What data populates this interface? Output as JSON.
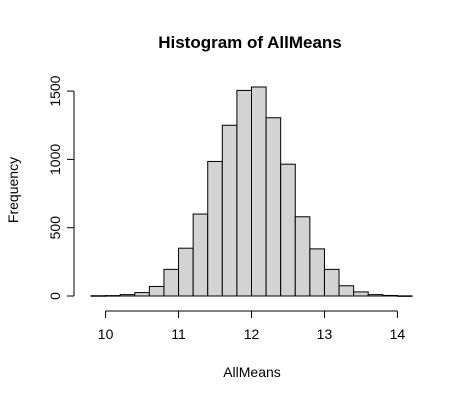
{
  "chart_data": {
    "type": "bar",
    "title": "Histogram of AllMeans",
    "xlabel": "AllMeans",
    "ylabel": "Frequency",
    "bin_edges": [
      9.8,
      10.0,
      10.2,
      10.4,
      10.6,
      10.8,
      11.0,
      11.2,
      11.4,
      11.6,
      11.8,
      12.0,
      12.2,
      12.4,
      12.6,
      12.8,
      13.0,
      13.2,
      13.4,
      13.6,
      13.8,
      14.0,
      14.2
    ],
    "values": [
      2,
      3,
      10,
      25,
      70,
      195,
      350,
      600,
      985,
      1250,
      1505,
      1530,
      1305,
      965,
      580,
      345,
      195,
      75,
      30,
      10,
      4,
      1
    ],
    "xlim": [
      9.8,
      14.2
    ],
    "ylim": [
      0,
      1530
    ],
    "x_ticks": [
      10,
      11,
      12,
      13,
      14
    ],
    "x_tick_labels": [
      "10",
      "11",
      "12",
      "13",
      "14"
    ],
    "y_ticks": [
      0,
      500,
      1000,
      1500
    ],
    "y_tick_labels": [
      "0",
      "500",
      "1000",
      "1500"
    ],
    "bar_color": "#d3d3d3",
    "edge_color": "#000000"
  }
}
